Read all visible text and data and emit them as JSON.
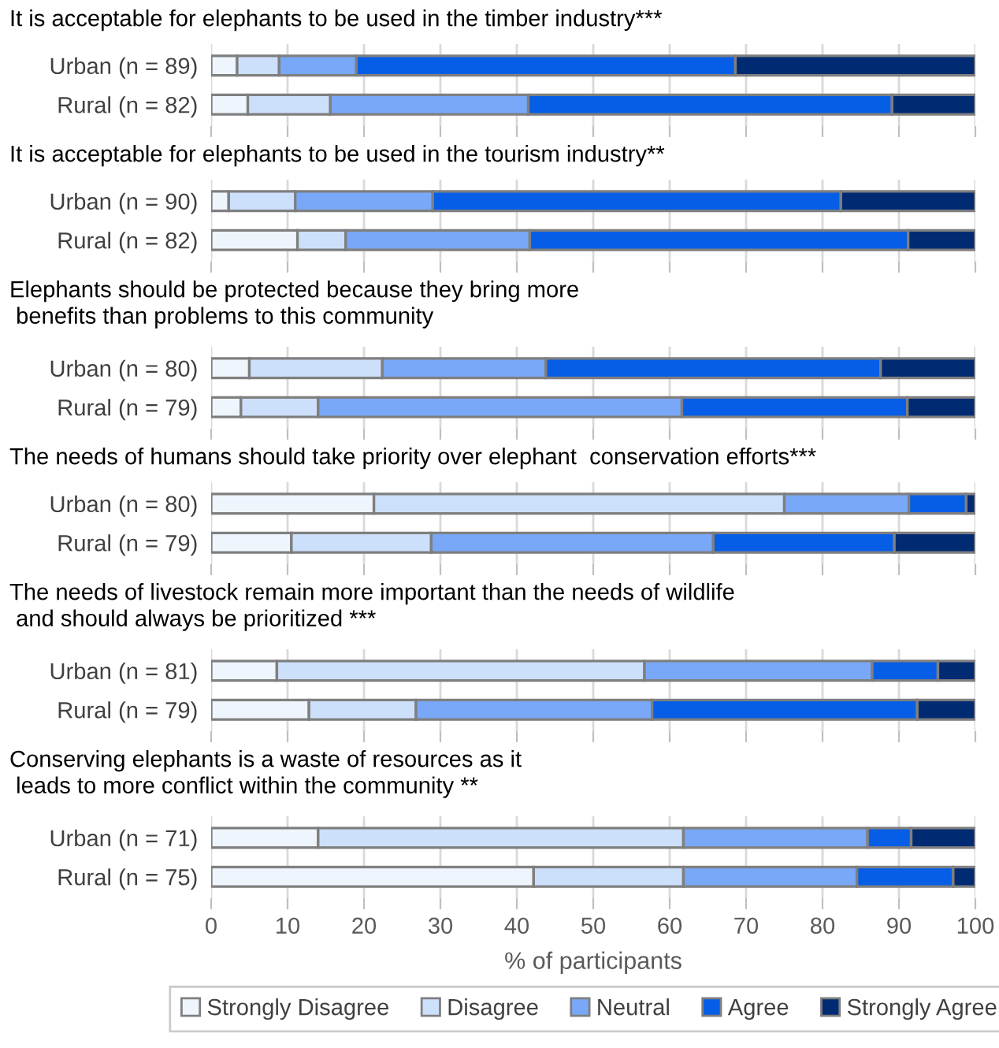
{
  "chart_data": [
    {
      "type": "bar",
      "orientation": "horizontal",
      "stacked": true,
      "title": "It is acceptable for elephants to be used in the timber industry***",
      "categories": [
        "Urban (n = 89)",
        "Rural (n = 82)"
      ],
      "xlim": [
        0,
        100
      ],
      "xticks": [
        0,
        10,
        20,
        30,
        40,
        50,
        60,
        70,
        80,
        90,
        100
      ],
      "grid": "x",
      "tick_labels": "y",
      "legend": "bottom",
      "series": [
        {
          "name": "Strongly Disagree",
          "color": "#eef5fd",
          "values": [
            3.4,
            4.8
          ]
        },
        {
          "name": "Disagree",
          "color": "#cce0fc",
          "values": [
            5.5,
            10.8
          ]
        },
        {
          "name": "Neutral",
          "color": "#78a8f7",
          "values": [
            10.1,
            25.9
          ]
        },
        {
          "name": "Agree",
          "color": "#065ee6",
          "values": [
            49.6,
            47.6
          ]
        },
        {
          "name": "Strongly Agree",
          "color": "#002b73",
          "values": [
            31.4,
            10.9
          ]
        }
      ]
    },
    {
      "type": "bar",
      "orientation": "horizontal",
      "stacked": true,
      "title": "It is acceptable for elephants to be used in the tourism industry**",
      "categories": [
        "Urban (n = 90)",
        "Rural (n = 82)"
      ],
      "xlim": [
        0,
        100
      ],
      "xticks": [
        0,
        10,
        20,
        30,
        40,
        50,
        60,
        70,
        80,
        90,
        100
      ],
      "grid": "x",
      "tick_labels": "y",
      "series": [
        {
          "color": "#eef5fd",
          "values": [
            2.3,
            11.3
          ]
        },
        {
          "color": "#cce0fc",
          "values": [
            8.7,
            6.3
          ]
        },
        {
          "color": "#78a8f7",
          "values": [
            18.0,
            24.1
          ]
        },
        {
          "color": "#065ee6",
          "values": [
            53.4,
            49.5
          ]
        },
        {
          "color": "#002b73",
          "values": [
            17.6,
            8.8
          ]
        }
      ]
    },
    {
      "type": "bar",
      "orientation": "horizontal",
      "stacked": true,
      "title": "Elephants should be protected because they bring more\n benefits than problems to this community",
      "categories": [
        "Urban (n = 80)",
        "Rural (n = 79)"
      ],
      "xlim": [
        0,
        100
      ],
      "xticks": [
        0,
        10,
        20,
        30,
        40,
        50,
        60,
        70,
        80,
        90,
        100
      ],
      "grid": "x",
      "tick_labels": "y",
      "series": [
        {
          "color": "#eef5fd",
          "values": [
            5.0,
            3.9
          ]
        },
        {
          "color": "#cce0fc",
          "values": [
            17.4,
            10.1
          ]
        },
        {
          "color": "#78a8f7",
          "values": [
            21.4,
            47.6
          ]
        },
        {
          "color": "#065ee6",
          "values": [
            43.8,
            29.5
          ]
        },
        {
          "color": "#002b73",
          "values": [
            12.4,
            8.9
          ]
        }
      ]
    },
    {
      "type": "bar",
      "orientation": "horizontal",
      "stacked": true,
      "title": "The needs of humans should take priority over elephant  conservation efforts***",
      "categories": [
        "Urban (n = 80)",
        "Rural (n = 79)"
      ],
      "xlim": [
        0,
        100
      ],
      "xticks": [
        0,
        10,
        20,
        30,
        40,
        50,
        60,
        70,
        80,
        90,
        100
      ],
      "grid": "x",
      "tick_labels": "y",
      "series": [
        {
          "color": "#eef5fd",
          "values": [
            21.3,
            10.5
          ]
        },
        {
          "color": "#cce0fc",
          "values": [
            53.7,
            18.3
          ]
        },
        {
          "color": "#78a8f7",
          "values": [
            16.3,
            36.9
          ]
        },
        {
          "color": "#065ee6",
          "values": [
            7.5,
            23.7
          ]
        },
        {
          "color": "#002b73",
          "values": [
            1.2,
            10.6
          ]
        }
      ]
    },
    {
      "type": "bar",
      "orientation": "horizontal",
      "stacked": true,
      "title": "The needs of livestock remain more important than the needs of wildlife\n and should always be prioritized ***",
      "categories": [
        "Urban (n = 81)",
        "Rural (n = 79)"
      ],
      "xlim": [
        0,
        100
      ],
      "xticks": [
        0,
        10,
        20,
        30,
        40,
        50,
        60,
        70,
        80,
        90,
        100
      ],
      "grid": "x",
      "tick_labels": "y",
      "series": [
        {
          "color": "#eef5fd",
          "values": [
            8.6,
            12.8
          ]
        },
        {
          "color": "#cce0fc",
          "values": [
            48.1,
            14.0
          ]
        },
        {
          "color": "#78a8f7",
          "values": [
            29.8,
            30.9
          ]
        },
        {
          "color": "#065ee6",
          "values": [
            8.6,
            34.7
          ]
        },
        {
          "color": "#002b73",
          "values": [
            4.9,
            7.6
          ]
        }
      ]
    },
    {
      "type": "bar",
      "orientation": "horizontal",
      "stacked": true,
      "title": "Conserving elephants is a waste of resources as it\n leads to more conflict within the community **",
      "xlabel": "% of participants",
      "categories": [
        "Urban (n = 71)",
        "Rural (n = 75)"
      ],
      "xlim": [
        0,
        100
      ],
      "xticks": [
        0,
        10,
        20,
        30,
        40,
        50,
        60,
        70,
        80,
        90,
        100
      ],
      "grid": "x",
      "series": [
        {
          "color": "#eef5fd",
          "values": [
            14.0,
            42.2
          ]
        },
        {
          "color": "#cce0fc",
          "values": [
            47.8,
            19.6
          ]
        },
        {
          "color": "#78a8f7",
          "values": [
            24.1,
            22.7
          ]
        },
        {
          "color": "#065ee6",
          "values": [
            5.7,
            12.6
          ]
        },
        {
          "color": "#002b73",
          "values": [
            8.4,
            2.9
          ]
        }
      ]
    }
  ]
}
